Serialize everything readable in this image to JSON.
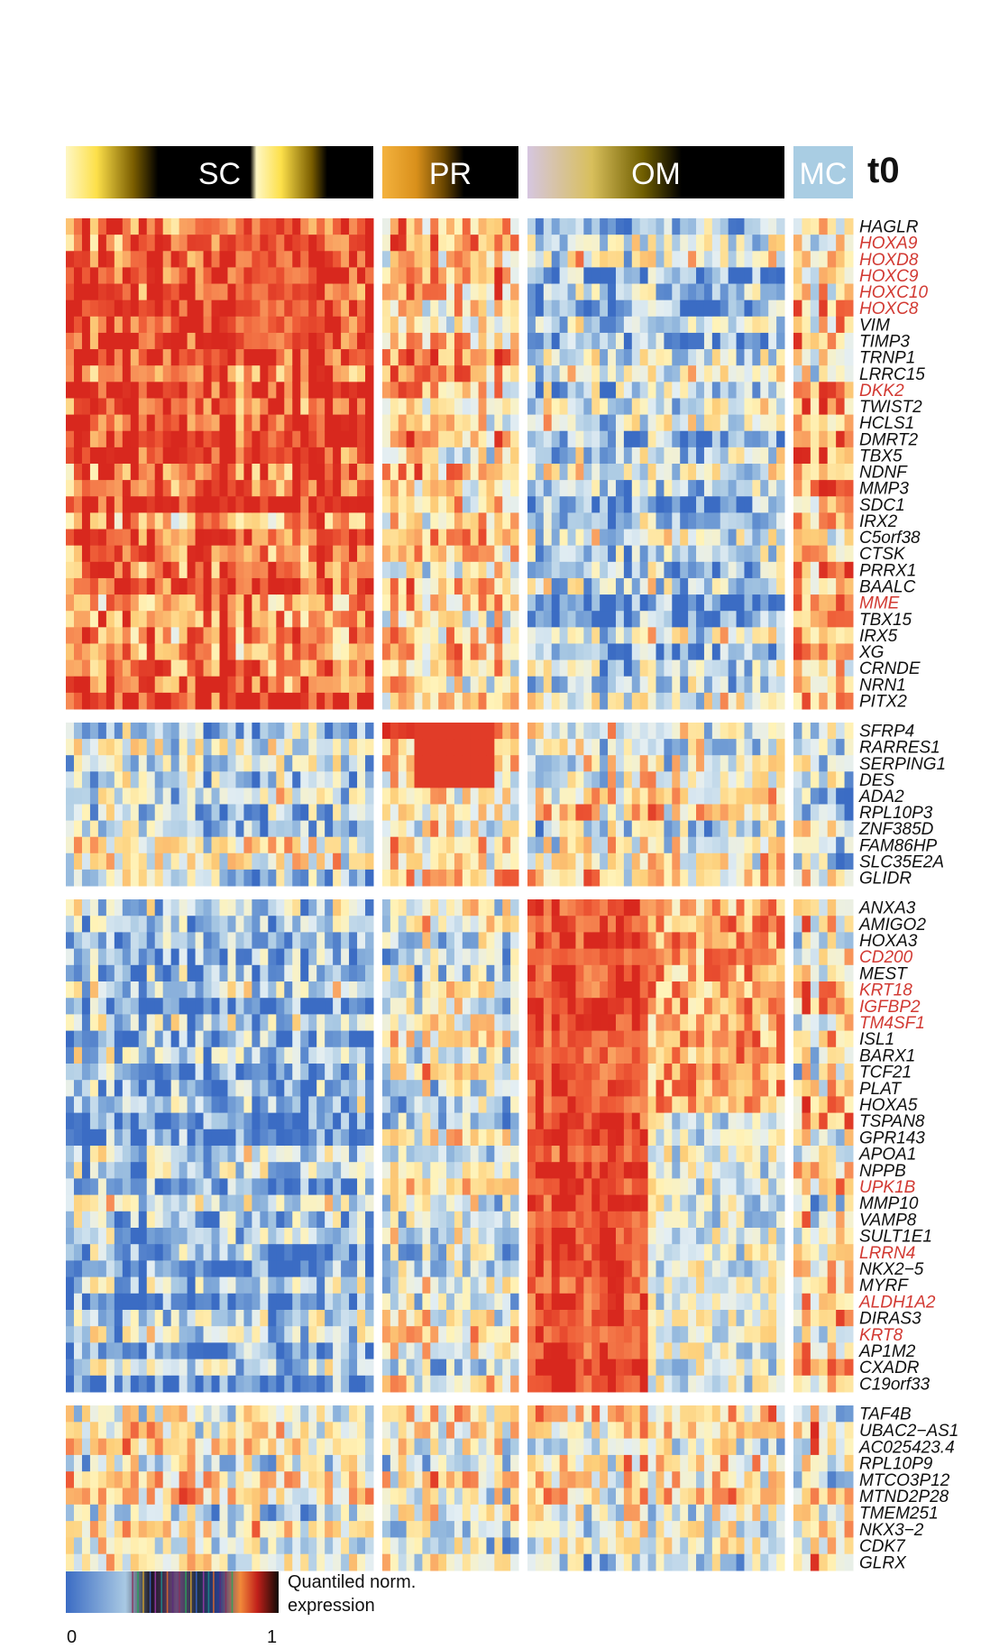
{
  "chart_data": {
    "type": "heatmap",
    "title": "",
    "timepoint_label": "t0",
    "groups": [
      {
        "name": "SC",
        "n_cols": 38,
        "pattern": {
          "1": 0.86,
          "2": 0.38,
          "3": 0.22,
          "4": 0.5
        }
      },
      {
        "name": "PR",
        "n_cols": 17,
        "pattern": {
          "1": 0.62,
          "2": 0.6,
          "3": 0.42,
          "4": 0.45
        }
      },
      {
        "name": "OM",
        "n_cols": 32,
        "pattern": {
          "1": 0.3,
          "2": 0.45,
          "3": 0.8,
          "4": 0.5
        }
      },
      {
        "name": "MC",
        "n_cols": 7,
        "pattern": {
          "1": 0.6,
          "2": 0.35,
          "3": 0.55,
          "4": 0.55
        }
      }
    ],
    "gene_clusters": [
      {
        "id": "1",
        "genes": [
          {
            "name": "HAGLR",
            "highlight": false
          },
          {
            "name": "HOXA9",
            "highlight": true
          },
          {
            "name": "HOXD8",
            "highlight": true
          },
          {
            "name": "HOXC9",
            "highlight": true
          },
          {
            "name": "HOXC10",
            "highlight": true
          },
          {
            "name": "HOXC8",
            "highlight": true
          },
          {
            "name": "VIM",
            "highlight": false
          },
          {
            "name": "TIMP3",
            "highlight": false
          },
          {
            "name": "TRNP1",
            "highlight": false
          },
          {
            "name": "LRRC15",
            "highlight": false
          },
          {
            "name": "DKK2",
            "highlight": true
          },
          {
            "name": "TWIST2",
            "highlight": false
          },
          {
            "name": "HCLS1",
            "highlight": false
          },
          {
            "name": "DMRT2",
            "highlight": false
          },
          {
            "name": "TBX5",
            "highlight": false
          },
          {
            "name": "NDNF",
            "highlight": false
          },
          {
            "name": "MMP3",
            "highlight": false
          },
          {
            "name": "SDC1",
            "highlight": false
          },
          {
            "name": "IRX2",
            "highlight": false
          },
          {
            "name": "C5orf38",
            "highlight": false
          },
          {
            "name": "CTSK",
            "highlight": false
          },
          {
            "name": "PRRX1",
            "highlight": false
          },
          {
            "name": "BAALC",
            "highlight": false
          },
          {
            "name": "MME",
            "highlight": true
          },
          {
            "name": "TBX15",
            "highlight": false
          },
          {
            "name": "IRX5",
            "highlight": false
          },
          {
            "name": "XG",
            "highlight": false
          },
          {
            "name": "CRNDE",
            "highlight": false
          },
          {
            "name": "NRN1",
            "highlight": false
          },
          {
            "name": "PITX2",
            "highlight": false
          }
        ]
      },
      {
        "id": "2",
        "genes": [
          {
            "name": "SFRP4",
            "highlight": false
          },
          {
            "name": "RARRES1",
            "highlight": false
          },
          {
            "name": "SERPING1",
            "highlight": false
          },
          {
            "name": "DES",
            "highlight": false
          },
          {
            "name": "ADA2",
            "highlight": false
          },
          {
            "name": "RPL10P3",
            "highlight": false
          },
          {
            "name": "ZNF385D",
            "highlight": false
          },
          {
            "name": "FAM86HP",
            "highlight": false
          },
          {
            "name": "SLC35E2A",
            "highlight": false
          },
          {
            "name": "GLIDR",
            "highlight": false
          }
        ]
      },
      {
        "id": "3",
        "genes": [
          {
            "name": "ANXA3",
            "highlight": false
          },
          {
            "name": "AMIGO2",
            "highlight": false
          },
          {
            "name": "HOXA3",
            "highlight": false
          },
          {
            "name": "CD200",
            "highlight": true
          },
          {
            "name": "MEST",
            "highlight": false
          },
          {
            "name": "KRT18",
            "highlight": true
          },
          {
            "name": "IGFBP2",
            "highlight": true
          },
          {
            "name": "TM4SF1",
            "highlight": true
          },
          {
            "name": "ISL1",
            "highlight": false
          },
          {
            "name": "BARX1",
            "highlight": false
          },
          {
            "name": "TCF21",
            "highlight": false
          },
          {
            "name": "PLAT",
            "highlight": false
          },
          {
            "name": "HOXA5",
            "highlight": false
          },
          {
            "name": "TSPAN8",
            "highlight": false
          },
          {
            "name": "GPR143",
            "highlight": false
          },
          {
            "name": "APOA1",
            "highlight": false
          },
          {
            "name": "NPPB",
            "highlight": false
          },
          {
            "name": "UPK1B",
            "highlight": true
          },
          {
            "name": "MMP10",
            "highlight": false
          },
          {
            "name": "VAMP8",
            "highlight": false
          },
          {
            "name": "SULT1E1",
            "highlight": false
          },
          {
            "name": "LRRN4",
            "highlight": true
          },
          {
            "name": "NKX2−5",
            "highlight": false
          },
          {
            "name": "MYRF",
            "highlight": false
          },
          {
            "name": "ALDH1A2",
            "highlight": true
          },
          {
            "name": "DIRAS3",
            "highlight": false
          },
          {
            "name": "KRT8",
            "highlight": true
          },
          {
            "name": "AP1M2",
            "highlight": false
          },
          {
            "name": "CXADR",
            "highlight": false
          },
          {
            "name": "C19orf33",
            "highlight": false
          }
        ]
      },
      {
        "id": "4",
        "genes": [
          {
            "name": "TAF4B",
            "highlight": false
          },
          {
            "name": "UBAC2−AS1",
            "highlight": false
          },
          {
            "name": "AC025423.4",
            "highlight": false
          },
          {
            "name": "RPL10P9",
            "highlight": false
          },
          {
            "name": "MTCO3P12",
            "highlight": false
          },
          {
            "name": "MTND2P28",
            "highlight": false
          },
          {
            "name": "TMEM251",
            "highlight": false
          },
          {
            "name": "NKX3−2",
            "highlight": false
          },
          {
            "name": "CDK7",
            "highlight": false
          },
          {
            "name": "GLRX",
            "highlight": false
          }
        ]
      }
    ],
    "color_scale": {
      "label": "Quantiled norm. expression",
      "label_line1": "Quantiled norm.",
      "label_line2": "expression",
      "min_label": "0",
      "max_label": "1",
      "min": 0,
      "max": 1,
      "colors": [
        "#3b6cc4",
        "#6f9bd4",
        "#a9c9e3",
        "#e3eef3",
        "#fff3b8",
        "#fdcf7a",
        "#f8955a",
        "#ee5a36",
        "#d8281e"
      ]
    },
    "header_colors": {
      "SC": [
        "#fef7c4",
        "#fde04a",
        "#7a5d00",
        "#000000"
      ],
      "PR": [
        "#f4b23e",
        "#d9901b",
        "#6b4700",
        "#000000"
      ],
      "OM": [
        "#d6c6e0",
        "#d8bf5c",
        "#705e00",
        "#000000"
      ],
      "MC": "#a9cde3"
    },
    "label_colors": {
      "normal": "#111111",
      "highlight": "#d23a33"
    }
  }
}
